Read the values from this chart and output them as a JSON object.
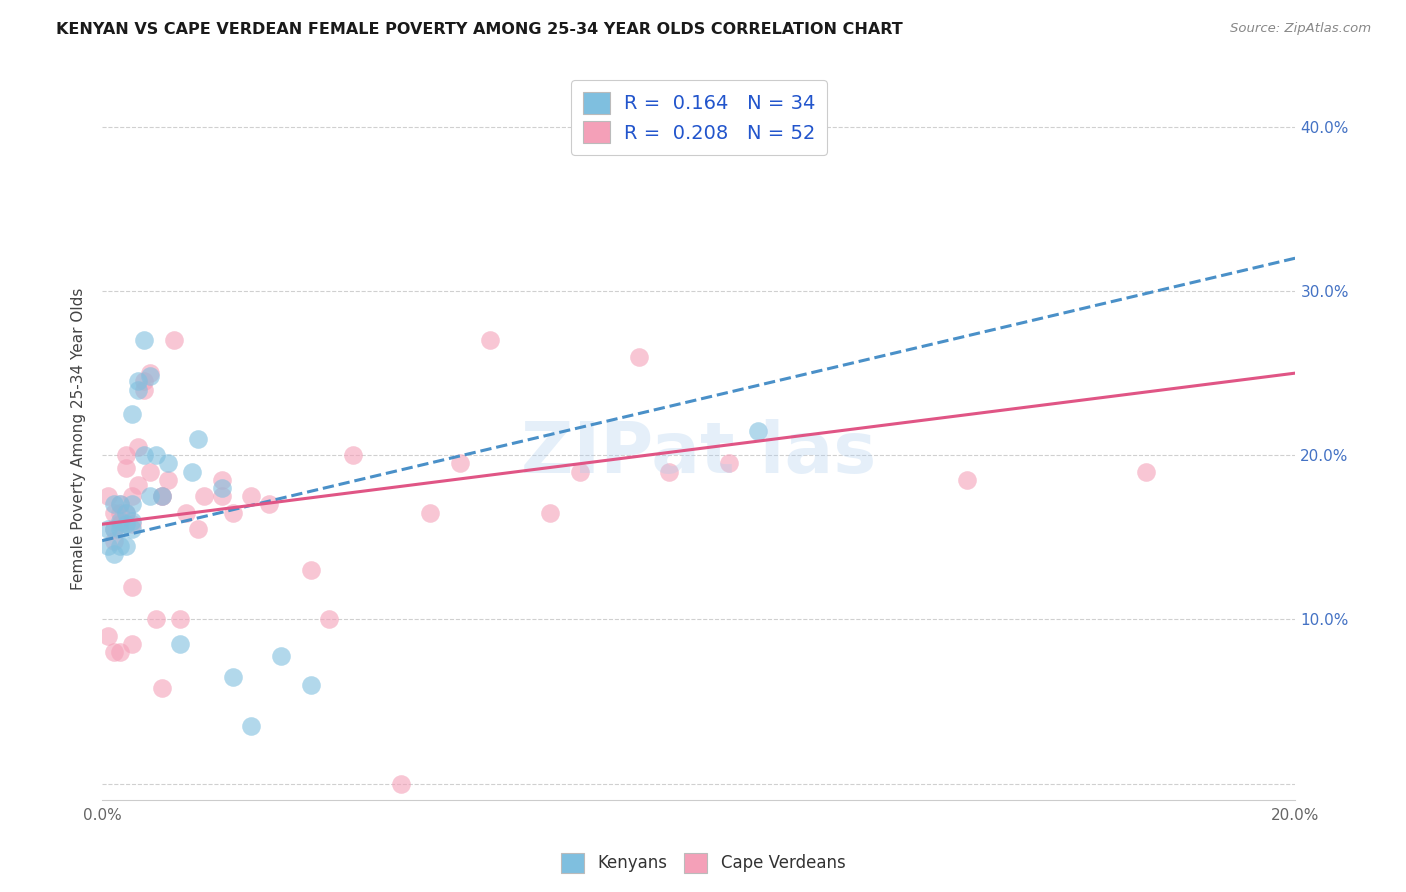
{
  "title": "KENYAN VS CAPE VERDEAN FEMALE POVERTY AMONG 25-34 YEAR OLDS CORRELATION CHART",
  "source": "Source: ZipAtlas.com",
  "ylabel": "Female Poverty Among 25-34 Year Olds",
  "xlim": [
    0.0,
    0.2
  ],
  "ylim": [
    -0.01,
    0.43
  ],
  "yticks": [
    0.0,
    0.1,
    0.2,
    0.3,
    0.4
  ],
  "right_yticklabels": [
    "",
    "10.0%",
    "20.0%",
    "30.0%",
    "40.0%"
  ],
  "legend_r_kenya": "R =  0.164",
  "legend_n_kenya": "N = 34",
  "legend_r_cape": "R =  0.208",
  "legend_n_cape": "N = 52",
  "kenya_color": "#7fbfdf",
  "cape_color": "#f4a0b8",
  "kenya_line_color": "#4a90c8",
  "cape_line_color": "#e05585",
  "watermark": "ZIPat las",
  "kenya_trend_x0": 0.0,
  "kenya_trend_y0": 0.148,
  "kenya_trend_x1": 0.2,
  "kenya_trend_y1": 0.32,
  "cape_trend_x0": 0.0,
  "cape_trend_y0": 0.158,
  "cape_trend_x1": 0.2,
  "cape_trend_y1": 0.25,
  "kenya_x": [
    0.001,
    0.001,
    0.002,
    0.002,
    0.002,
    0.003,
    0.003,
    0.003,
    0.003,
    0.004,
    0.004,
    0.004,
    0.005,
    0.005,
    0.005,
    0.005,
    0.006,
    0.006,
    0.007,
    0.007,
    0.008,
    0.008,
    0.009,
    0.01,
    0.011,
    0.013,
    0.015,
    0.016,
    0.02,
    0.022,
    0.025,
    0.03,
    0.035,
    0.11
  ],
  "kenya_y": [
    0.155,
    0.145,
    0.17,
    0.155,
    0.14,
    0.17,
    0.16,
    0.155,
    0.145,
    0.165,
    0.158,
    0.145,
    0.225,
    0.17,
    0.16,
    0.155,
    0.245,
    0.24,
    0.27,
    0.2,
    0.248,
    0.175,
    0.2,
    0.175,
    0.195,
    0.085,
    0.19,
    0.21,
    0.18,
    0.065,
    0.035,
    0.078,
    0.06,
    0.215
  ],
  "cape_x": [
    0.001,
    0.001,
    0.002,
    0.002,
    0.002,
    0.002,
    0.003,
    0.003,
    0.003,
    0.003,
    0.004,
    0.004,
    0.004,
    0.005,
    0.005,
    0.005,
    0.005,
    0.006,
    0.006,
    0.007,
    0.007,
    0.008,
    0.008,
    0.009,
    0.01,
    0.01,
    0.01,
    0.011,
    0.012,
    0.013,
    0.014,
    0.016,
    0.017,
    0.02,
    0.02,
    0.022,
    0.025,
    0.028,
    0.035,
    0.038,
    0.042,
    0.05,
    0.055,
    0.06,
    0.065,
    0.075,
    0.08,
    0.09,
    0.095,
    0.105,
    0.145,
    0.175
  ],
  "cape_y": [
    0.175,
    0.09,
    0.165,
    0.155,
    0.148,
    0.08,
    0.165,
    0.158,
    0.17,
    0.08,
    0.2,
    0.192,
    0.165,
    0.175,
    0.158,
    0.12,
    0.085,
    0.182,
    0.205,
    0.245,
    0.24,
    0.19,
    0.25,
    0.1,
    0.175,
    0.175,
    0.058,
    0.185,
    0.27,
    0.1,
    0.165,
    0.155,
    0.175,
    0.185,
    0.175,
    0.165,
    0.175,
    0.17,
    0.13,
    0.1,
    0.2,
    0.0,
    0.165,
    0.195,
    0.27,
    0.165,
    0.19,
    0.26,
    0.19,
    0.195,
    0.185,
    0.19
  ]
}
